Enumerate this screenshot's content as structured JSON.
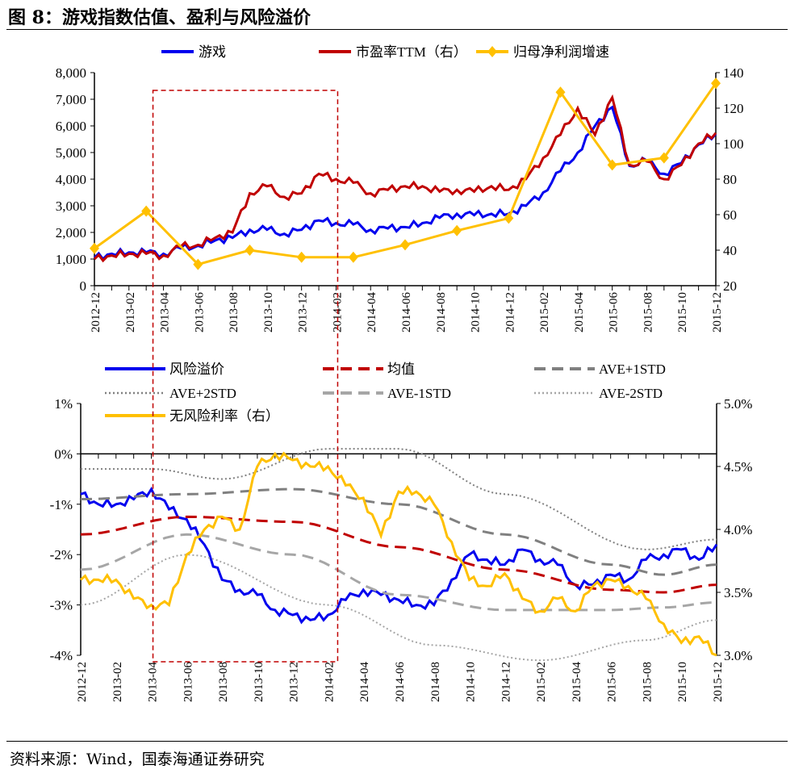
{
  "title": "图 8：游戏指数估值、盈利与风险溢价",
  "source": "资料来源：Wind，国泰海通证券研究",
  "chart_data": [
    {
      "type": "line",
      "x_tick_labels": [
        "2012-12",
        "2013-02",
        "2013-04",
        "2013-06",
        "2013-08",
        "2013-10",
        "2013-12",
        "2014-02",
        "2014-04",
        "2014-06",
        "2014-08",
        "2014-10",
        "2014-12",
        "2015-02",
        "2015-04",
        "2015-06",
        "2015-08",
        "2015-10",
        "2015-12"
      ],
      "months": [
        "2012-12",
        "2013-01",
        "2013-02",
        "2013-03",
        "2013-04",
        "2013-05",
        "2013-06",
        "2013-07",
        "2013-08",
        "2013-09",
        "2013-10",
        "2013-11",
        "2013-12",
        "2014-01",
        "2014-02",
        "2014-03",
        "2014-04",
        "2014-05",
        "2014-06",
        "2014-07",
        "2014-08",
        "2014-09",
        "2014-10",
        "2014-11",
        "2014-12",
        "2015-01",
        "2015-02",
        "2015-03",
        "2015-04",
        "2015-05",
        "2015-06",
        "2015-07",
        "2015-08",
        "2015-09",
        "2015-10",
        "2015-11",
        "2015-12"
      ],
      "ylim_left": [
        0,
        8000
      ],
      "yticks_left": [
        "0",
        "1,000",
        "2,000",
        "3,000",
        "4,000",
        "5,000",
        "6,000",
        "7,000",
        "8,000"
      ],
      "ylim_right": [
        20,
        140
      ],
      "yticks_right": [
        "20",
        "40",
        "60",
        "80",
        "100",
        "120",
        "140"
      ],
      "grid": false,
      "legend_position": "top",
      "series": [
        {
          "name": "游戏",
          "axis": "left",
          "color": "#0000ee",
          "values": [
            1050,
            1200,
            1250,
            1250,
            1200,
            1400,
            1500,
            1700,
            1800,
            2100,
            2100,
            1950,
            2100,
            2450,
            2350,
            2300,
            2100,
            2150,
            2200,
            2350,
            2550,
            2700,
            2650,
            2700,
            2700,
            3000,
            3500,
            4300,
            5000,
            6000,
            6700,
            4500,
            4700,
            4200,
            4600,
            5300,
            5700
          ]
        },
        {
          "name": "市盈率TTM（右）",
          "axis": "right",
          "color": "#c00000",
          "values": [
            35,
            37,
            38,
            38,
            37,
            42,
            43,
            47,
            50,
            72,
            76,
            70,
            72,
            83,
            80,
            78,
            72,
            74,
            76,
            76,
            73,
            74,
            73,
            76,
            74,
            80,
            92,
            105,
            120,
            105,
            126,
            88,
            90,
            80,
            88,
            100,
            106
          ]
        },
        {
          "name": "归母净利润增速",
          "axis": "right",
          "color": "#ffc000",
          "marker": "diamond",
          "x": [
            "2012-12",
            "2013-03",
            "2013-06",
            "2013-09",
            "2013-12",
            "2014-03",
            "2014-06",
            "2014-09",
            "2014-12",
            "2015-03",
            "2015-06",
            "2015-09",
            "2015-12"
          ],
          "values": [
            41,
            62,
            32,
            40,
            36,
            36,
            43,
            51,
            58,
            129,
            88,
            92,
            134
          ]
        }
      ],
      "annotation": {
        "type": "dashed-rectangle",
        "color": "#c00000",
        "x_range": [
          "2013-04",
          "2014-02"
        ]
      }
    },
    {
      "type": "line",
      "x_tick_labels": [
        "2012-12",
        "2013-02",
        "2013-04",
        "2013-06",
        "2013-08",
        "2013-10",
        "2013-12",
        "2014-02",
        "2014-04",
        "2014-06",
        "2014-08",
        "2014-10",
        "2014-12",
        "2015-02",
        "2015-04",
        "2015-06",
        "2015-08",
        "2015-10",
        "2015-12"
      ],
      "ylim_left": [
        -4,
        1
      ],
      "yticks_left": [
        "-4%",
        "-3%",
        "-2%",
        "-1%",
        "0%",
        "1%"
      ],
      "ylim_right": [
        3.0,
        5.0
      ],
      "yticks_right": [
        "3.0%",
        "3.5%",
        "4.0%",
        "4.5%",
        "5.0%"
      ],
      "grid": false,
      "legend_position": "top",
      "series": [
        {
          "name": "风险溢价",
          "axis": "left",
          "color": "#0000ee",
          "style": "solid",
          "values": [
            -0.8,
            -1.0,
            -1.0,
            -0.9,
            -0.7,
            -1.1,
            -1.3,
            -1.8,
            -2.5,
            -2.7,
            -2.8,
            -3.1,
            -3.2,
            -3.3,
            -3.2,
            -2.9,
            -2.7,
            -2.8,
            -2.9,
            -3.0,
            -3.0,
            -2.5,
            -2.0,
            -2.1,
            -2.2,
            -1.9,
            -2.1,
            -2.2,
            -2.6,
            -2.6,
            -2.4,
            -2.5,
            -2.1,
            -2.0,
            -1.9,
            -2.1,
            -1.8
          ]
        },
        {
          "name": "均值",
          "axis": "left",
          "color": "#c00000",
          "style": "dashed",
          "x": [
            "2012-12",
            "2013-06",
            "2013-12",
            "2014-06",
            "2014-12",
            "2015-06",
            "2015-09",
            "2015-12"
          ],
          "values": [
            -1.6,
            -1.25,
            -1.35,
            -1.85,
            -2.3,
            -2.7,
            -2.75,
            -2.6
          ]
        },
        {
          "name": "AVE+1STD",
          "axis": "left",
          "color": "#808080",
          "style": "dashed",
          "x": [
            "2012-12",
            "2013-06",
            "2013-12",
            "2014-06",
            "2014-12",
            "2015-06",
            "2015-09",
            "2015-12"
          ],
          "values": [
            -0.9,
            -0.8,
            -0.7,
            -1.0,
            -1.6,
            -2.2,
            -2.4,
            -2.2
          ]
        },
        {
          "name": "AVE+2STD",
          "axis": "left",
          "color": "#808080",
          "style": "dotted",
          "x": [
            "2012-12",
            "2013-04",
            "2013-08",
            "2014-02",
            "2014-06",
            "2014-12",
            "2015-08",
            "2015-12"
          ],
          "values": [
            -0.3,
            -0.3,
            -0.5,
            0.1,
            0.1,
            -0.8,
            -1.9,
            -1.7
          ]
        },
        {
          "name": "AVE-1STD",
          "axis": "left",
          "color": "#a6a6a6",
          "style": "dashed",
          "x": [
            "2012-12",
            "2013-06",
            "2013-12",
            "2014-06",
            "2014-12",
            "2015-06",
            "2015-09",
            "2015-12"
          ],
          "values": [
            -2.3,
            -1.6,
            -2.0,
            -2.8,
            -3.1,
            -3.1,
            -3.05,
            -2.95
          ]
        },
        {
          "name": "AVE-2STD",
          "axis": "left",
          "color": "#a6a6a6",
          "style": "dotted",
          "x": [
            "2012-12",
            "2013-06",
            "2014-02",
            "2014-08",
            "2015-02",
            "2015-08",
            "2015-12"
          ],
          "values": [
            -3.0,
            -2.0,
            -3.0,
            -3.8,
            -4.1,
            -3.7,
            -3.3
          ]
        },
        {
          "name": "无风险利率（右）",
          "axis": "right",
          "color": "#ffc000",
          "style": "solid",
          "values": [
            3.6,
            3.6,
            3.6,
            3.45,
            3.4,
            3.4,
            3.8,
            4.0,
            4.1,
            4.0,
            4.5,
            4.6,
            4.55,
            4.5,
            4.5,
            4.35,
            4.25,
            3.95,
            4.3,
            4.3,
            4.2,
            3.9,
            3.6,
            3.55,
            3.65,
            3.45,
            3.35,
            3.45,
            3.35,
            3.55,
            3.6,
            3.55,
            3.45,
            3.25,
            3.1,
            3.15,
            3.0
          ]
        }
      ],
      "annotation": {
        "type": "dashed-rectangle",
        "color": "#c00000",
        "x_range": [
          "2013-04",
          "2014-02"
        ]
      }
    }
  ]
}
